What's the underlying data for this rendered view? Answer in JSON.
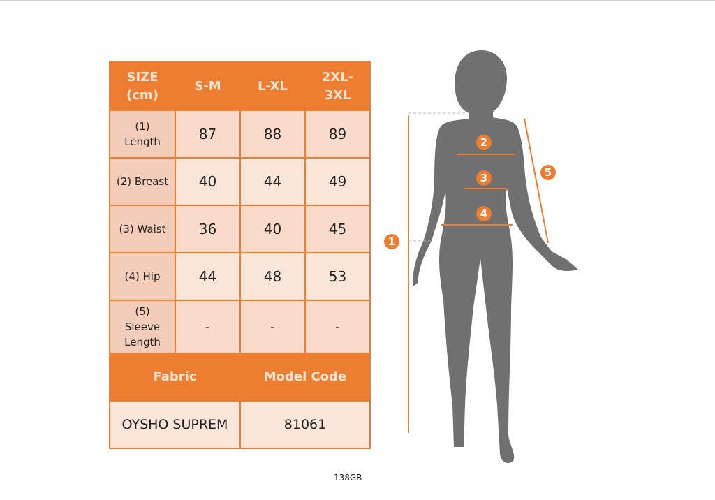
{
  "table": {
    "header": [
      "SIZE\n(cm)",
      "S-M",
      "L-XL",
      "2XL-\n3XL"
    ],
    "rows": [
      {
        "label": "(1)\nLength",
        "values": [
          "87",
          "88",
          "89"
        ]
      },
      {
        "label": "(2) Breast",
        "values": [
          "40",
          "44",
          "49"
        ]
      },
      {
        "label": "(3) Waist",
        "values": [
          "36",
          "40",
          "45"
        ]
      },
      {
        "label": "(4) Hip",
        "values": [
          "44",
          "48",
          "53"
        ]
      },
      {
        "label": "(5)\nSleeve\nLength",
        "values": [
          "-",
          "-",
          "-"
        ]
      }
    ],
    "fabric_label": "Fabric",
    "model_code_label": "Model Code",
    "fabric": "OYSHO SUPREM",
    "model_code": "81061"
  },
  "figure": {
    "markers": [
      "1",
      "2",
      "3",
      "4",
      "5"
    ],
    "accent": "#ED7D31",
    "silhouette": "#707070"
  },
  "footer_code": "138GR"
}
